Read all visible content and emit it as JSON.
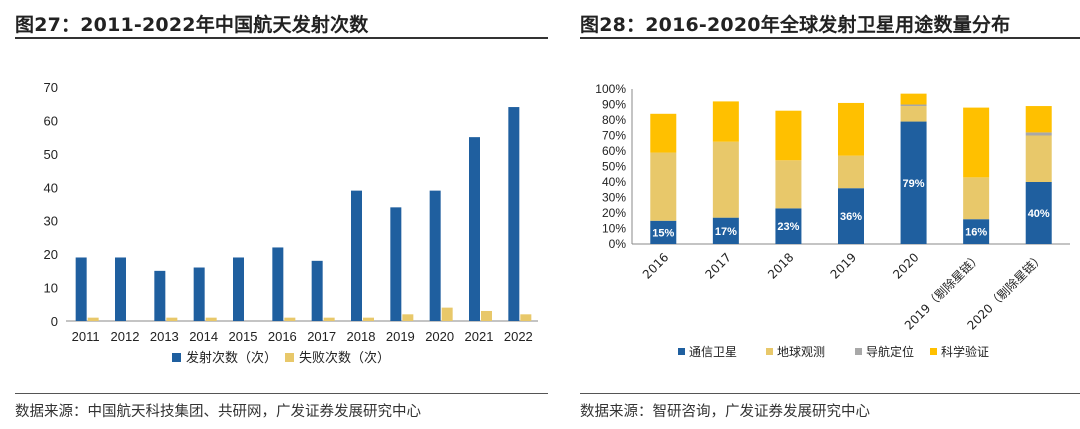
{
  "left": {
    "title": "图27：2011-2022年中国航天发射次数",
    "source": "数据来源：中国航天科技集团、共研网，广发证券发展研究中心"
  },
  "right": {
    "title": "图28：2016-2020年全球发射卫星用途数量分布",
    "source": "数据来源：智研咨询，广发证券发展研究中心"
  },
  "colors": {
    "blue": "#1f5f9f",
    "tan": "#e8c86a",
    "gray": "#a8a8a8",
    "gold": "#ffc000"
  },
  "chart_data": [
    {
      "type": "bar",
      "title": "2011-2022年中国航天发射次数",
      "categories": [
        "2011",
        "2012",
        "2013",
        "2014",
        "2015",
        "2016",
        "2017",
        "2018",
        "2019",
        "2020",
        "2021",
        "2022"
      ],
      "series": [
        {
          "name": "发射次数（次）",
          "values": [
            19,
            19,
            15,
            16,
            19,
            22,
            18,
            39,
            34,
            39,
            55,
            64
          ]
        },
        {
          "name": "失败次数（次）",
          "values": [
            1,
            0,
            1,
            1,
            0,
            1,
            1,
            1,
            2,
            4,
            3,
            2
          ]
        }
      ],
      "ylim": [
        0,
        70
      ],
      "yticks": [
        0,
        10,
        20,
        30,
        40,
        50,
        60,
        70
      ],
      "legend": "bottom",
      "grid": false
    },
    {
      "type": "bar",
      "stacked": true,
      "title": "2016-2020年全球发射卫星用途数量分布",
      "categories": [
        "2016",
        "2017",
        "2018",
        "2019",
        "2020",
        "2019（剔除星链）",
        "2020（剔除星链）"
      ],
      "series": [
        {
          "name": "通信卫星",
          "values": [
            15,
            17,
            23,
            36,
            79,
            16,
            40
          ]
        },
        {
          "name": "地球观测",
          "values": [
            44,
            49,
            31,
            21,
            10,
            27,
            30
          ]
        },
        {
          "name": "导航定位",
          "values": [
            0,
            0,
            0,
            0,
            1,
            0,
            2
          ]
        },
        {
          "name": "科学验证",
          "values": [
            25,
            26,
            32,
            34,
            7,
            45,
            17
          ]
        }
      ],
      "data_labels": [
        "15%",
        "17%",
        "23%",
        "36%",
        "79%",
        "16%",
        "40%"
      ],
      "ylim": [
        0,
        100
      ],
      "yticks": [
        "0%",
        "10%",
        "20%",
        "30%",
        "40%",
        "50%",
        "60%",
        "70%",
        "80%",
        "90%",
        "100%"
      ],
      "legend": "bottom",
      "grid": false
    }
  ]
}
